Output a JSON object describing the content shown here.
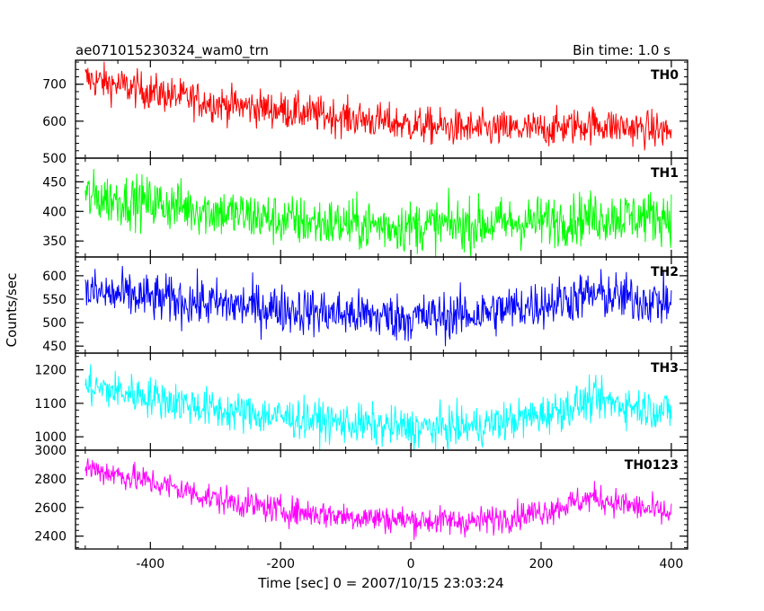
{
  "chart_data": {
    "type": "line",
    "title": "ae071015230324_wam0_trn",
    "subtitle": "Bin time: 1.0 s",
    "xlabel": "Time [sec] 0 = 2007/10/15 23:03:24",
    "ylabel": "Counts/sec",
    "xlim": [
      -515,
      425
    ],
    "xticks": [
      "-400",
      "-200",
      "0",
      "200",
      "400"
    ],
    "xtick_values": [
      -400,
      -200,
      0,
      200,
      400
    ],
    "grid": false,
    "panels": [
      {
        "name": "TH0",
        "color": "#ff0000",
        "ylim": [
          500,
          765
        ],
        "yticks": [
          "500",
          "600",
          "700"
        ],
        "ytick_values": [
          500,
          600,
          700
        ],
        "trend": {
          "x": [
            -500,
            -400,
            -300,
            -200,
            -100,
            0,
            100,
            200,
            280,
            400
          ],
          "y": [
            715,
            680,
            648,
            630,
            610,
            590,
            578,
            578,
            592,
            572
          ]
        },
        "noise": 25
      },
      {
        "name": "TH1",
        "color": "#00ff00",
        "ylim": [
          323,
          490
        ],
        "yticks": [
          "350",
          "400",
          "450"
        ],
        "ytick_values": [
          350,
          400,
          450
        ],
        "trend": {
          "x": [
            -500,
            -400,
            -300,
            -200,
            -100,
            0,
            100,
            200,
            280,
            400
          ],
          "y": [
            425,
            415,
            400,
            385,
            378,
            375,
            378,
            383,
            390,
            392
          ]
        },
        "noise": 22
      },
      {
        "name": "TH2",
        "color": "#0000ff",
        "ylim": [
          435,
          640
        ],
        "yticks": [
          "450",
          "500",
          "550",
          "600"
        ],
        "ytick_values": [
          450,
          500,
          550,
          600
        ],
        "trend": {
          "x": [
            -500,
            -400,
            -300,
            -200,
            -100,
            0,
            100,
            200,
            280,
            400
          ],
          "y": [
            565,
            552,
            540,
            530,
            518,
            510,
            518,
            540,
            560,
            542
          ]
        },
        "noise": 26
      },
      {
        "name": "TH3",
        "color": "#00ffff",
        "ylim": [
          960,
          1250
        ],
        "yticks": [
          "1000",
          "1100",
          "1200"
        ],
        "ytick_values": [
          1000,
          1100,
          1200
        ],
        "trend": {
          "x": [
            -500,
            -400,
            -300,
            -200,
            -100,
            0,
            100,
            200,
            280,
            400
          ],
          "y": [
            1150,
            1120,
            1080,
            1060,
            1040,
            1025,
            1030,
            1065,
            1110,
            1075
          ]
        },
        "noise": 30
      },
      {
        "name": "TH0123",
        "color": "#ff00ff",
        "ylim": [
          2310,
          3000
        ],
        "yticks": [
          "2400",
          "2600",
          "2800",
          "3000"
        ],
        "ytick_values": [
          2400,
          2600,
          2800,
          3000
        ],
        "trend": {
          "x": [
            -500,
            -400,
            -300,
            -200,
            -100,
            0,
            100,
            200,
            280,
            400
          ],
          "y": [
            2880,
            2780,
            2660,
            2580,
            2540,
            2510,
            2500,
            2570,
            2670,
            2550
          ]
        },
        "noise": 50
      }
    ]
  }
}
